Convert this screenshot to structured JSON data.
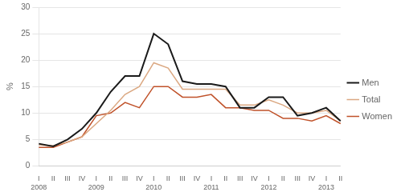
{
  "chart_data": {
    "type": "line",
    "ylabel": "%",
    "categories": [
      "I",
      "II",
      "III",
      "IV",
      "I",
      "II",
      "III",
      "IV",
      "I",
      "II",
      "III",
      "IV",
      "I",
      "II",
      "III",
      "IV",
      "I",
      "II",
      "III",
      "IV",
      "I",
      "II"
    ],
    "annotations": [
      {
        "text": "2008",
        "x": 0
      },
      {
        "text": "2009",
        "x": 4
      },
      {
        "text": "2010",
        "x": 8
      },
      {
        "text": "2011",
        "x": 12
      },
      {
        "text": "2012",
        "x": 16
      },
      {
        "text": "2013",
        "x": 20
      }
    ],
    "series": [
      {
        "name": "Total",
        "color": "#dba882",
        "values": [
          4.0,
          3.8,
          4.5,
          5.5,
          8.0,
          10.5,
          13.5,
          15.0,
          19.5,
          18.5,
          14.5,
          14.5,
          14.5,
          14.5,
          11.5,
          11.5,
          12.5,
          11.5,
          10.0,
          10.0,
          10.5,
          8.5
        ]
      },
      {
        "name": "Men",
        "color": "#1a1a1a",
        "values": [
          4.2,
          3.7,
          5.0,
          7.0,
          10.0,
          14.0,
          17.0,
          17.0,
          25.0,
          23.0,
          16.0,
          15.5,
          15.5,
          15.0,
          11.0,
          11.0,
          13.0,
          13.0,
          9.5,
          10.0,
          11.0,
          8.5
        ]
      },
      {
        "name": "Women",
        "color": "#c0522a",
        "values": [
          3.5,
          3.5,
          4.5,
          5.5,
          9.5,
          10.0,
          12.0,
          11.0,
          15.0,
          15.0,
          13.0,
          13.0,
          13.5,
          11.0,
          11.0,
          10.5,
          10.5,
          9.0,
          9.0,
          8.5,
          9.5,
          8.0
        ]
      }
    ],
    "ylim": [
      0,
      30
    ],
    "yticks": [
      0,
      5,
      10,
      15,
      20,
      25,
      30
    ],
    "grid": true,
    "legend": "right"
  }
}
